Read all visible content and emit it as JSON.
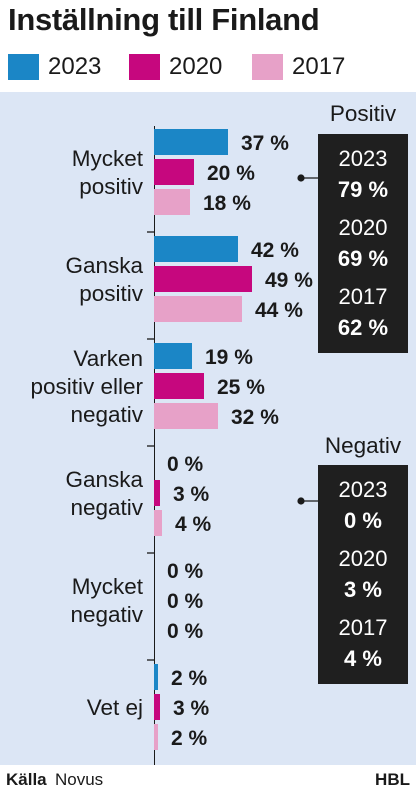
{
  "title": "Inställning till Finland",
  "legend": [
    {
      "label": "2023",
      "color": "#1b86c6"
    },
    {
      "label": "2020",
      "color": "#c6077e"
    },
    {
      "label": "2017",
      "color": "#e7a1c8"
    }
  ],
  "chart_data": {
    "type": "bar",
    "orientation": "horizontal",
    "title": "Inställning till Finland",
    "unit": "%",
    "categories": [
      [
        "Mycket",
        "positiv"
      ],
      [
        "Ganska",
        "positiv"
      ],
      [
        "Varken",
        "positiv eller",
        "negativ"
      ],
      [
        "Ganska",
        "negativ"
      ],
      [
        "Mycket",
        "negativ"
      ],
      [
        "Vet ej"
      ]
    ],
    "series": [
      {
        "name": "2023",
        "color": "#1b86c6",
        "values": [
          37,
          42,
          19,
          0,
          0,
          2
        ]
      },
      {
        "name": "2020",
        "color": "#c6077e",
        "values": [
          20,
          49,
          25,
          3,
          0,
          3
        ]
      },
      {
        "name": "2017",
        "color": "#e7a1c8",
        "values": [
          18,
          44,
          32,
          4,
          0,
          2
        ]
      }
    ],
    "summaries": [
      {
        "heading": "Positiv",
        "rows": [
          {
            "year": "2023",
            "value": "79 %"
          },
          {
            "year": "2020",
            "value": "69 %"
          },
          {
            "year": "2017",
            "value": "62 %"
          }
        ]
      },
      {
        "heading": "Negativ",
        "rows": [
          {
            "year": "2023",
            "value": "0 %"
          },
          {
            "year": "2020",
            "value": "3 %"
          },
          {
            "year": "2017",
            "value": "4 %"
          }
        ]
      }
    ]
  },
  "footer": {
    "source_label": "Källa",
    "source_name": "Novus",
    "brand": "HBL"
  }
}
